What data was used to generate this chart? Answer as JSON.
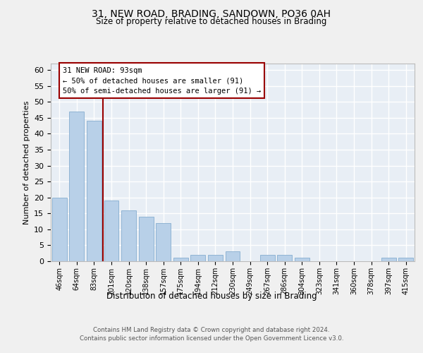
{
  "title": "31, NEW ROAD, BRADING, SANDOWN, PO36 0AH",
  "subtitle": "Size of property relative to detached houses in Brading",
  "xlabel": "Distribution of detached houses by size in Brading",
  "ylabel": "Number of detached properties",
  "categories": [
    "46sqm",
    "64sqm",
    "83sqm",
    "101sqm",
    "120sqm",
    "138sqm",
    "157sqm",
    "175sqm",
    "194sqm",
    "212sqm",
    "230sqm",
    "249sqm",
    "267sqm",
    "286sqm",
    "304sqm",
    "323sqm",
    "341sqm",
    "360sqm",
    "378sqm",
    "397sqm",
    "415sqm"
  ],
  "values": [
    20,
    47,
    44,
    19,
    16,
    14,
    12,
    1,
    2,
    2,
    3,
    0,
    2,
    2,
    1,
    0,
    0,
    0,
    0,
    1,
    1
  ],
  "bar_color": "#b8d0e8",
  "bar_edge_color": "#90b4d4",
  "background_color": "#e8eef5",
  "grid_color": "#ffffff",
  "marker_line_color": "#990000",
  "annotation_line1": "31 NEW ROAD: 93sqm",
  "annotation_line2": "← 50% of detached houses are smaller (91)",
  "annotation_line3": "50% of semi-detached houses are larger (91) →",
  "annotation_box_facecolor": "#ffffff",
  "annotation_box_edgecolor": "#990000",
  "ylim": [
    0,
    62
  ],
  "yticks": [
    0,
    5,
    10,
    15,
    20,
    25,
    30,
    35,
    40,
    45,
    50,
    55,
    60
  ],
  "fig_facecolor": "#f0f0f0",
  "footer_line1": "Contains HM Land Registry data © Crown copyright and database right 2024.",
  "footer_line2": "Contains public sector information licensed under the Open Government Licence v3.0."
}
